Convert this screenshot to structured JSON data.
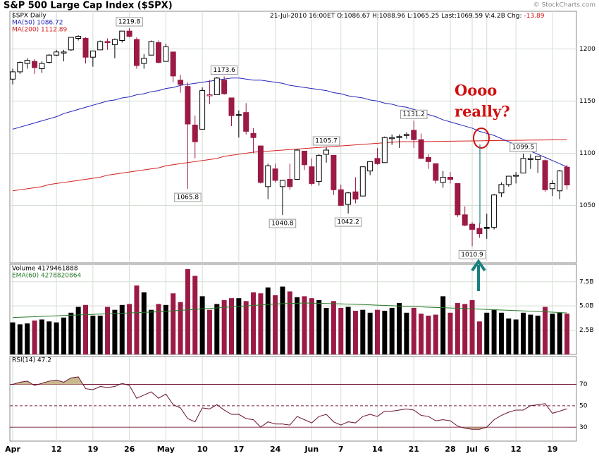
{
  "credit": "© StockCharts.com",
  "chart_data": [
    {
      "type": "candlestick",
      "title": "S&P 500 Large Cap Index ($SPX)",
      "subtitle": "$SPX Daily",
      "stats": "21-Jul-2010 16:00ET  O:1086.67  H:1088.96  L:1065.25  Last:1069.59  V:4.2B  Chg:",
      "change": "-13.89",
      "change_color": "#d01010",
      "categories": [
        "Apr",
        null,
        null,
        null,
        null,
        null,
        "12",
        null,
        null,
        null,
        null,
        "19",
        null,
        null,
        null,
        null,
        "26",
        null,
        null,
        null,
        null,
        "May",
        null,
        null,
        null,
        null,
        "10",
        null,
        null,
        null,
        null,
        "17",
        null,
        null,
        null,
        null,
        "24",
        null,
        null,
        null,
        null,
        "Jun",
        null,
        null,
        null,
        "7",
        null,
        null,
        null,
        null,
        "14",
        null,
        null,
        null,
        null,
        "21",
        null,
        null,
        null,
        null,
        "28",
        null,
        null,
        "Jul",
        null,
        "6",
        null,
        null,
        null,
        "12",
        null,
        null,
        null,
        null,
        "19",
        null,
        null
      ],
      "open": [
        1171,
        1178,
        1186,
        1188,
        1181,
        1187,
        1194,
        1196,
        1199,
        1210,
        1210,
        1192,
        1199,
        1207,
        1204,
        1208,
        1217,
        1209,
        1186,
        1194,
        1206,
        1188,
        1197,
        1170,
        1164,
        1127,
        1123,
        1155,
        1156,
        1170,
        1153,
        1137,
        1139,
        1119,
        1107,
        1068,
        1085,
        1068,
        1075,
        1075,
        1102,
        1087,
        1073,
        1099,
        1098,
        1065,
        1051,
        1063,
        1059,
        1083,
        1095,
        1091,
        1114,
        1115,
        1117,
        1122,
        1113,
        1096,
        1090,
        1072,
        1077,
        1071,
        1041,
        1032,
        1028,
        1029,
        1029,
        1062,
        1070,
        1078,
        1081,
        1094,
        1094,
        1093,
        1066,
        1064,
        1086.67
      ],
      "high": [
        1181,
        1188,
        1191,
        1190,
        1188,
        1195,
        1199,
        1199,
        1211,
        1213,
        1211,
        1198,
        1208,
        1210,
        1210,
        1217,
        1219.8,
        1211,
        1195,
        1208,
        1208,
        1205,
        1197,
        1175,
        1168,
        1136,
        1163,
        1170,
        1173,
        1173.6,
        1153,
        1141,
        1148,
        1124,
        1107,
        1090,
        1090,
        1074,
        1090,
        1104,
        1102,
        1095,
        1099,
        1105.7,
        1098,
        1070,
        1063,
        1077,
        1087,
        1092,
        1105,
        1116,
        1118,
        1118,
        1120,
        1131.2,
        1119,
        1099,
        1090,
        1083,
        1082,
        1071,
        1049,
        1034,
        1033,
        1042,
        1061,
        1072,
        1078,
        1082,
        1099.5,
        1099,
        1097,
        1094,
        1074,
        1084,
        1088.96
      ],
      "low": [
        1166,
        1176,
        1181,
        1176,
        1177,
        1186,
        1193,
        1188,
        1198,
        1208,
        1186,
        1183,
        1199,
        1199,
        1191,
        1206,
        1211,
        1181,
        1181,
        1194,
        1186,
        1188,
        1168,
        1158,
        1065.8,
        1095,
        1123,
        1147,
        1156,
        1156,
        1126,
        1115,
        1118,
        1100,
        1071,
        1056,
        1072,
        1040.8,
        1065,
        1075,
        1084,
        1069,
        1069,
        1091,
        1060,
        1050,
        1042.2,
        1052,
        1059,
        1079,
        1089,
        1091,
        1108,
        1105,
        1114,
        1105,
        1095,
        1085,
        1071,
        1067,
        1071,
        1039,
        1030,
        1010.9,
        1019,
        1018,
        1027,
        1058,
        1068,
        1071,
        1081,
        1085,
        1081,
        1063,
        1059,
        1056,
        1065.25
      ],
      "close": [
        1178,
        1187,
        1189,
        1182,
        1186,
        1194,
        1197,
        1197,
        1211,
        1212,
        1192,
        1198,
        1207,
        1206,
        1209,
        1217,
        1212,
        1184,
        1191,
        1207,
        1187,
        1202,
        1174,
        1166,
        1128,
        1111,
        1160,
        1156,
        1172,
        1157,
        1136,
        1137,
        1121,
        1115,
        1072,
        1088,
        1074,
        1074,
        1068,
        1103,
        1089,
        1071,
        1098,
        1103,
        1065,
        1050,
        1062,
        1056,
        1087,
        1092,
        1090,
        1115,
        1115,
        1116,
        1118,
        1113,
        1095,
        1092,
        1074,
        1077,
        1075,
        1041,
        1031,
        1027,
        1023,
        1028,
        1060,
        1070,
        1078,
        1079,
        1095,
        1095,
        1097,
        1065,
        1071,
        1083,
        1069.59
      ],
      "up_color": "#000000",
      "down_color": "#9b1b44",
      "series": [
        {
          "name": "MA(50) 1086.72",
          "color": "#2323b8",
          "values": [
            1123,
            1125,
            1127,
            1129,
            1131,
            1133,
            1135,
            1138,
            1140,
            1142,
            1144,
            1146,
            1148,
            1150,
            1151,
            1153,
            1154,
            1156,
            1157,
            1159,
            1160,
            1162,
            1163,
            1165,
            1166,
            1167,
            1168,
            1169,
            1170,
            1171,
            1172,
            1172,
            1171,
            1170,
            1170,
            1169,
            1168,
            1167,
            1165,
            1164,
            1163,
            1162,
            1161,
            1160,
            1158,
            1157,
            1155,
            1154,
            1153,
            1151,
            1150,
            1148,
            1147,
            1145,
            1144,
            1142,
            1140,
            1137,
            1135,
            1132,
            1130,
            1128,
            1126,
            1124,
            1121,
            1119,
            1117,
            1114,
            1111,
            1108,
            1105,
            1102,
            1099,
            1096,
            1093,
            1090,
            1086.72
          ]
        },
        {
          "name": "MA(200) 1112.89",
          "color": "#d42020",
          "values": [
            1064,
            1065,
            1066,
            1067,
            1068,
            1070,
            1071,
            1072,
            1073,
            1074,
            1075,
            1076,
            1077,
            1079,
            1080,
            1081,
            1082,
            1083,
            1084,
            1085,
            1086,
            1088,
            1089,
            1090,
            1091,
            1092,
            1093,
            1094,
            1095,
            1097,
            1098,
            1099,
            1100,
            1101,
            1101.5,
            1102,
            1102.5,
            1103,
            1103.5,
            1104,
            1104.5,
            1105,
            1105.5,
            1106,
            1106.5,
            1107,
            1107.5,
            1108,
            1108.5,
            1109,
            1109.5,
            1110,
            1110.5,
            1111,
            1111,
            1111,
            1111.1,
            1111.2,
            1111.3,
            1111.4,
            1111.5,
            1111.6,
            1111.7,
            1111.8,
            1111.9,
            1112,
            1112.1,
            1112.2,
            1112.3,
            1112.4,
            1112.5,
            1112.6,
            1112.6,
            1112.7,
            1112.8,
            1112.8,
            1112.89
          ]
        }
      ],
      "ylim": [
        995,
        1236
      ],
      "yticks": [
        1050,
        1100,
        1150,
        1200
      ],
      "grid": true,
      "annotation": [
        "Oooo",
        "really?"
      ],
      "annotation_color": "#d01010"
    },
    {
      "type": "bar",
      "title": "Volume 4179461888",
      "values": [
        3.3,
        3.1,
        3.2,
        3.5,
        3.6,
        3.4,
        3.3,
        3.8,
        4.3,
        4.9,
        5.1,
        4.0,
        4.0,
        4.9,
        4.6,
        5.1,
        5.2,
        7.1,
        6.4,
        4.6,
        5.2,
        5.1,
        6.3,
        5.4,
        8.8,
        8.1,
        6.0,
        4.6,
        5.2,
        5.6,
        5.8,
        5.8,
        5.5,
        6.4,
        6.3,
        6.9,
        6.1,
        7.0,
        6.5,
        5.9,
        6.0,
        5.8,
        5.6,
        4.8,
        5.5,
        4.8,
        4.9,
        4.5,
        4.6,
        4.3,
        4.6,
        4.5,
        4.8,
        5.3,
        4.3,
        4.8,
        4.2,
        4.0,
        4.1,
        6.0,
        4.3,
        5.3,
        5.2,
        5.6,
        3.4,
        4.3,
        4.6,
        4.3,
        3.7,
        3.6,
        4.3,
        4.1,
        4.0,
        4.9,
        4.2,
        4.3,
        4.2
      ],
      "series": [
        {
          "name": "EMA(60) 4278820864",
          "color": "#2a7a2a",
          "values": [
            3.8,
            3.83,
            3.86,
            3.89,
            3.92,
            3.95,
            3.98,
            4.01,
            4.04,
            4.07,
            4.1,
            4.13,
            4.16,
            4.19,
            4.22,
            4.25,
            4.28,
            4.31,
            4.34,
            4.37,
            4.4,
            4.45,
            4.5,
            4.55,
            4.6,
            4.65,
            4.7,
            4.75,
            4.8,
            4.85,
            4.9,
            4.95,
            5.0,
            5.05,
            5.1,
            5.15,
            5.2,
            5.23,
            5.26,
            5.28,
            5.3,
            5.29,
            5.27,
            5.25,
            5.23,
            5.21,
            5.19,
            5.17,
            5.14,
            5.11,
            5.08,
            5.05,
            5.02,
            4.99,
            4.96,
            4.93,
            4.9,
            4.87,
            4.84,
            4.82,
            4.79,
            4.76,
            4.73,
            4.7,
            4.67,
            4.64,
            4.61,
            4.58,
            4.55,
            4.52,
            4.49,
            4.46,
            4.43,
            4.4,
            4.36,
            4.32,
            4.28
          ]
        }
      ],
      "ylim": [
        0,
        9.3
      ],
      "yticks": [
        {
          "value": 2.5,
          "label": "2.5B"
        },
        {
          "value": 5.0,
          "label": "5.0B"
        },
        {
          "value": 7.5,
          "label": "7.5B"
        }
      ],
      "grid": true
    },
    {
      "type": "line",
      "series": [
        {
          "name": "RSI(14) 47.2",
          "color": "#6a1030",
          "values": [
            70,
            72,
            73,
            69,
            71,
            73,
            74,
            72,
            76,
            77,
            66,
            65,
            68,
            67,
            68,
            71,
            69,
            57,
            60,
            63,
            57,
            61,
            51,
            48,
            38,
            35,
            48,
            47,
            51,
            46,
            42,
            42,
            38,
            37,
            30,
            35,
            33,
            33,
            32,
            40,
            37,
            34,
            40,
            42,
            35,
            32,
            35,
            34,
            40,
            42,
            40,
            45,
            45,
            46,
            47,
            46,
            41,
            40,
            36,
            37,
            36,
            31,
            29,
            28,
            28,
            30,
            37,
            41,
            44,
            46,
            46,
            50,
            51,
            52,
            43,
            45,
            47.2
          ]
        }
      ],
      "ylim": [
        17,
        96
      ],
      "yticks": [
        30,
        50,
        70
      ],
      "level_color": "#7a1d3a",
      "fill_color": "#c9b98f",
      "grid": true
    }
  ]
}
